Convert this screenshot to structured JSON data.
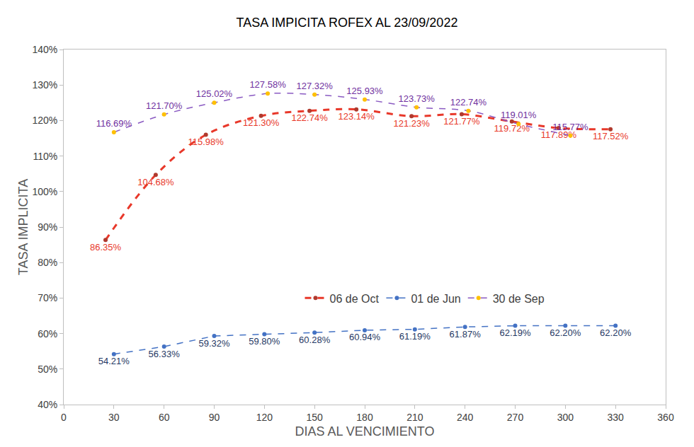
{
  "chart_data": {
    "type": "line",
    "title": "TASA IMPICITA ROFEX AL 23/09/2022",
    "x_label": "DIAS AL VENCIMIENTO",
    "y_label": "TASA IMPLICITA",
    "xlim": [
      0,
      360
    ],
    "xticks": [
      0,
      30,
      60,
      90,
      120,
      150,
      180,
      210,
      240,
      270,
      300,
      330,
      360
    ],
    "ylim": [
      40,
      140
    ],
    "yticks": [
      {
        "value": 40,
        "label": "40%"
      },
      {
        "value": 50,
        "label": "50%"
      },
      {
        "value": 60,
        "label": "60%"
      },
      {
        "value": 70,
        "label": "70%"
      },
      {
        "value": 80,
        "label": "80%"
      },
      {
        "value": 90,
        "label": "90%"
      },
      {
        "value": 100,
        "label": "100%"
      },
      {
        "value": 110,
        "label": "110%"
      },
      {
        "value": 120,
        "label": "120%"
      },
      {
        "value": 130,
        "label": "130%"
      },
      {
        "value": 140,
        "label": "140%"
      }
    ],
    "grid": false,
    "legend": "bottom",
    "data_labels": true,
    "series": [
      {
        "name": "06 de Oct",
        "color": "#e8382a",
        "line_style": "dash",
        "marker": "circle",
        "x": [
          25,
          55,
          85,
          118,
          147,
          175,
          208,
          238,
          268,
          296,
          327
        ],
        "values": [
          86.35,
          104.68,
          115.98,
          121.3,
          122.74,
          123.14,
          121.23,
          121.77,
          119.72,
          117.89,
          117.52
        ],
        "value_labels": [
          "86.35%",
          "104.68%",
          "115.98%",
          "121.30%",
          "122.74%",
          "123.14%",
          "121.23%",
          "121.77%",
          "119.72%",
          "117.89%",
          "117.52%"
        ]
      },
      {
        "name": "01 de Jun",
        "color": "#4472c4",
        "line_style": "dash",
        "marker": "circle",
        "x": [
          30,
          60,
          90,
          120,
          150,
          180,
          210,
          240,
          270,
          300,
          330
        ],
        "values": [
          54.21,
          56.33,
          59.32,
          59.8,
          60.28,
          60.94,
          61.19,
          61.87,
          62.19,
          62.2,
          62.2
        ],
        "value_labels": [
          "54.21%",
          "56.33%",
          "59.32%",
          "59.80%",
          "60.28%",
          "60.94%",
          "61.19%",
          "61.87%",
          "62.19%",
          "62.20%",
          "62.20%"
        ]
      },
      {
        "name": "30 de Sep",
        "color": "#8a5ac2",
        "line_style": "dash",
        "marker": "circle",
        "x": [
          30,
          60,
          90,
          122,
          150,
          180,
          211,
          242,
          272,
          303
        ],
        "values": [
          116.69,
          121.7,
          125.02,
          127.58,
          127.32,
          125.93,
          123.73,
          122.74,
          119.01,
          115.77
        ],
        "value_labels": [
          "116.69%",
          "121.70%",
          "125.02%",
          "127.58%",
          "127.32%",
          "125.93%",
          "123.73%",
          "122.74%",
          "119.01%",
          "115.77%"
        ]
      }
    ]
  }
}
